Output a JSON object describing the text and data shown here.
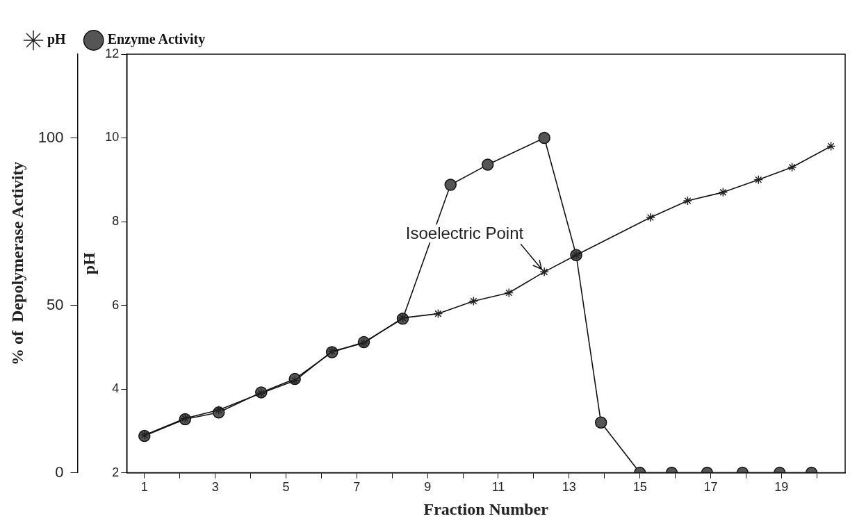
{
  "chart_data": {
    "type": "line",
    "xlabel": "Fraction Number",
    "ylabel": "pH",
    "y2label": "% of  Depolymerase Activity",
    "xlim": [
      0.5,
      20.8
    ],
    "xticks": [
      1,
      {
        "value": 2,
        "label": null
      },
      3,
      {
        "value": 4,
        "label": null
      },
      5,
      {
        "value": 6,
        "label": null
      },
      7,
      {
        "value": 8,
        "label": null
      },
      9,
      {
        "value": 10,
        "label": null
      },
      11,
      {
        "value": 12,
        "label": null
      },
      13,
      {
        "value": 14,
        "label": null
      },
      15,
      {
        "value": 16,
        "label": null
      },
      17,
      {
        "value": 18,
        "label": null
      },
      19,
      {
        "value": 20,
        "label": null
      }
    ],
    "ylim": [
      2,
      12
    ],
    "yticks": [
      2,
      4,
      6,
      8,
      10,
      12
    ],
    "y2lim": [
      0,
      125
    ],
    "y2ticks": [
      0,
      50,
      100
    ],
    "legend": "top left",
    "grid": false,
    "annotations": [
      {
        "text": "Isoelectric Point",
        "x": 12.3,
        "y": 6.8
      }
    ],
    "series": [
      {
        "name": "pH",
        "color": "#222222",
        "marker": "cross",
        "x": [
          1,
          2.15,
          3.1,
          4.3,
          5.25,
          6.3,
          7.2,
          8.3,
          9.3,
          10.3,
          11.3,
          12.3,
          13.2,
          15.3,
          16.35,
          17.35,
          18.35,
          19.3,
          20.4
        ],
        "values": [
          2.9,
          3.3,
          3.5,
          3.9,
          4.2,
          4.9,
          5.1,
          5.7,
          5.8,
          6.1,
          6.3,
          6.8,
          7.2,
          8.1,
          8.5,
          8.7,
          9.0,
          9.3,
          9.8
        ]
      },
      {
        "name": "Enzyme Activity",
        "color": "#555555",
        "marker": "circle",
        "axis": "y2",
        "x": [
          1,
          2.15,
          3.1,
          4.3,
          5.25,
          6.3,
          7.2,
          8.3,
          9.65,
          10.7,
          12.3,
          13.2,
          13.9,
          15,
          15.9,
          16.9,
          17.9,
          18.95,
          19.85
        ],
        "values": [
          11,
          16,
          18,
          24,
          28,
          36,
          39,
          46,
          86,
          92,
          100,
          65,
          15,
          0,
          0,
          0,
          0,
          0,
          0
        ]
      }
    ]
  }
}
